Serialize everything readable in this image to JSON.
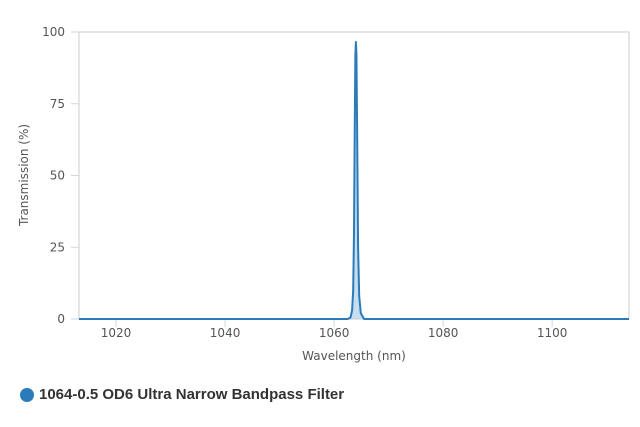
{
  "chart_data": {
    "type": "area",
    "title": "",
    "xlabel": "Wavelength (nm)",
    "ylabel": "Transmission (%)",
    "xlim": [
      1013.2,
      1114.1
    ],
    "ylim": [
      0,
      100
    ],
    "xticks": [
      1020,
      1040,
      1060,
      1080,
      1100
    ],
    "yticks": [
      0,
      25,
      50,
      75,
      100
    ],
    "grid": false,
    "legend_position": "bottom-left",
    "series": [
      {
        "name": "1064-0.5 OD6 Ultra Narrow Bandpass Filter",
        "color": "#2b7bba",
        "fill": "#b8d6ea",
        "x": [
          1013.2,
          1062.5,
          1063.0,
          1063.3,
          1063.5,
          1063.65,
          1063.8,
          1063.9,
          1064.0,
          1064.1,
          1064.25,
          1064.4,
          1064.6,
          1064.9,
          1065.5,
          1114.1
        ],
        "y": [
          0,
          0,
          0.5,
          3,
          10,
          30,
          70,
          92,
          96.5,
          92,
          60,
          25,
          8,
          2,
          0,
          0
        ]
      }
    ]
  }
}
